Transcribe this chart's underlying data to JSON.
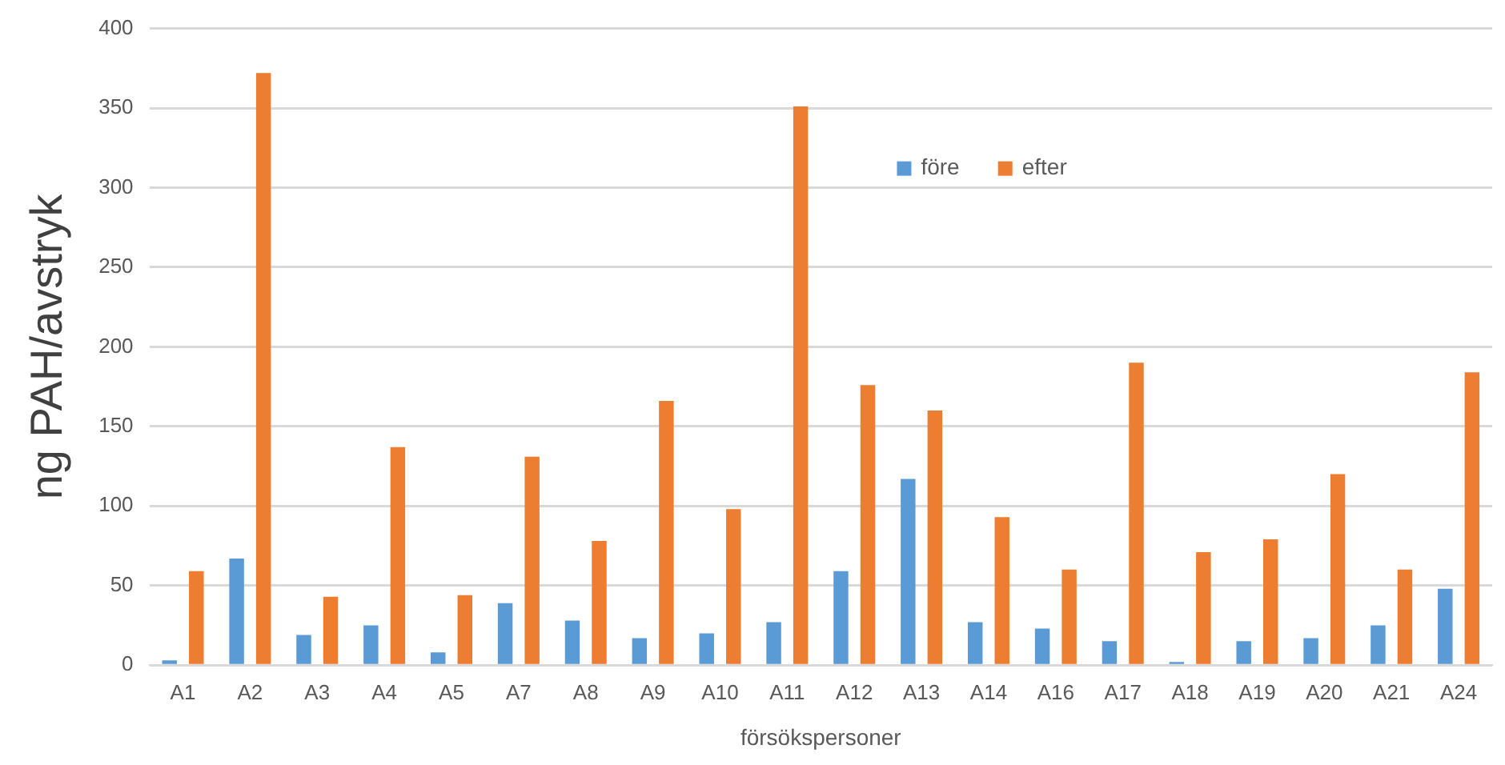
{
  "chart_data": {
    "type": "bar",
    "xlabel": "försökspersoner",
    "ylabel": "ng PAH/avstryk",
    "categories": [
      "A1",
      "A2",
      "A3",
      "A4",
      "A5",
      "A7",
      "A8",
      "A9",
      "A10",
      "A11",
      "A12",
      "A13",
      "A14",
      "A16",
      "A17",
      "A18",
      "A19",
      "A20",
      "A21",
      "A24"
    ],
    "series": [
      {
        "name": "före",
        "color": "#5b9bd5",
        "values": [
          3,
          67,
          19,
          25,
          8,
          39,
          28,
          17,
          20,
          27,
          59,
          117,
          27,
          23,
          15,
          2,
          15,
          17,
          25,
          48
        ]
      },
      {
        "name": "efter",
        "color": "#ed7d31",
        "values": [
          59,
          372,
          43,
          137,
          44,
          131,
          78,
          166,
          98,
          351,
          176,
          160,
          93,
          60,
          190,
          71,
          79,
          120,
          60,
          184
        ]
      }
    ],
    "ylim": [
      0,
      400
    ],
    "yticks": [
      0,
      50,
      100,
      150,
      200,
      250,
      300,
      350,
      400
    ],
    "grid": "y",
    "legend": "top"
  }
}
